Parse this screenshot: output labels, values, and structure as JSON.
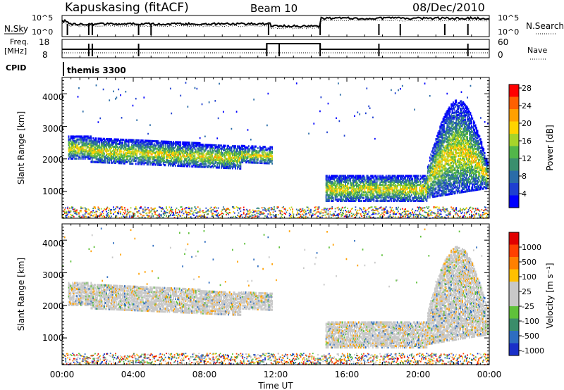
{
  "header": {
    "station": "Kapuskasing (fitACF)",
    "beam": "Beam 10",
    "date": "08/Dec/2010"
  },
  "top_panel": {
    "left_label": "N.Sky",
    "right_label": "N.Search",
    "left_ticks": [
      "10^5",
      "10^0"
    ],
    "right_ticks": [
      "10^5",
      "10^0"
    ]
  },
  "freq_panel": {
    "left_label_1": "Freq.",
    "left_label_2": "[MHz]",
    "right_label": "Nave",
    "left_ticks": [
      "18",
      "8"
    ],
    "right_ticks": [
      "60",
      "0"
    ]
  },
  "cpid": {
    "label": "CPID",
    "program": "themis 3300"
  },
  "x_axis": {
    "label": "Time UT",
    "ticks": [
      "00:00",
      "04:00",
      "08:00",
      "12:00",
      "16:00",
      "20:00",
      "00:00"
    ]
  },
  "power_panel": {
    "ylabel": "Slant Range [km]",
    "yticks": [
      "1000",
      "2000",
      "3000",
      "4000"
    ],
    "colorbar_label": "Power [dB]",
    "colorbar_ticks": [
      "4",
      "8",
      "12",
      "16",
      "20",
      "24",
      "28"
    ],
    "colors": [
      "#0000ff",
      "#1e3fd0",
      "#2a6ca8",
      "#3a8f6e",
      "#52b64a",
      "#a6d42a",
      "#ffd400",
      "#ffa000",
      "#ff6000",
      "#ff0000"
    ]
  },
  "velocity_panel": {
    "ylabel": "Slant Range [km]",
    "yticks": [
      "1000",
      "2000",
      "3000",
      "4000"
    ],
    "colorbar_label": "Velocity [m s⁻¹]",
    "colorbar_ticks": [
      "1000",
      "500",
      "100",
      "25",
      "-25",
      "-100",
      "-500",
      "-1000"
    ],
    "colors": [
      "#1a2fc8",
      "#2e6dc0",
      "#3b8d6a",
      "#5fc13a",
      "#c8c8c8",
      "#c8c8c8",
      "#ffc000",
      "#ff8000",
      "#ff4000",
      "#e00000"
    ]
  },
  "chart_data": {
    "type": "heatmap",
    "title": "Kapuskasing (fitACF) Beam 10 08/Dec/2010",
    "xlabel": "Time UT",
    "ylabel": "Slant Range [km]",
    "xlim": [
      "00:00",
      "24:00"
    ],
    "ylim": [
      180,
      4500
    ],
    "freq_mhz_by_period": [
      {
        "from": "00:00",
        "to": "11:30",
        "freq": 10
      },
      {
        "from": "11:30",
        "to": "14:30",
        "freq": 13
      },
      {
        "from": "14:30",
        "to": "24:00",
        "freq": 10
      }
    ],
    "scatter_bands": [
      {
        "from_h": 0.3,
        "to_h": 1.6,
        "range_lo": 2000,
        "range_hi": 2700
      },
      {
        "from_h": 1.6,
        "to_h": 11.8,
        "range_lo": 1700,
        "range_hi": 2600
      },
      {
        "from_h": 14.8,
        "to_h": 20.5,
        "range_lo": 700,
        "range_hi": 1500
      },
      {
        "from_h": 20.5,
        "to_h": 23.9,
        "range_lo": 800,
        "range_hi": 3800
      }
    ]
  }
}
